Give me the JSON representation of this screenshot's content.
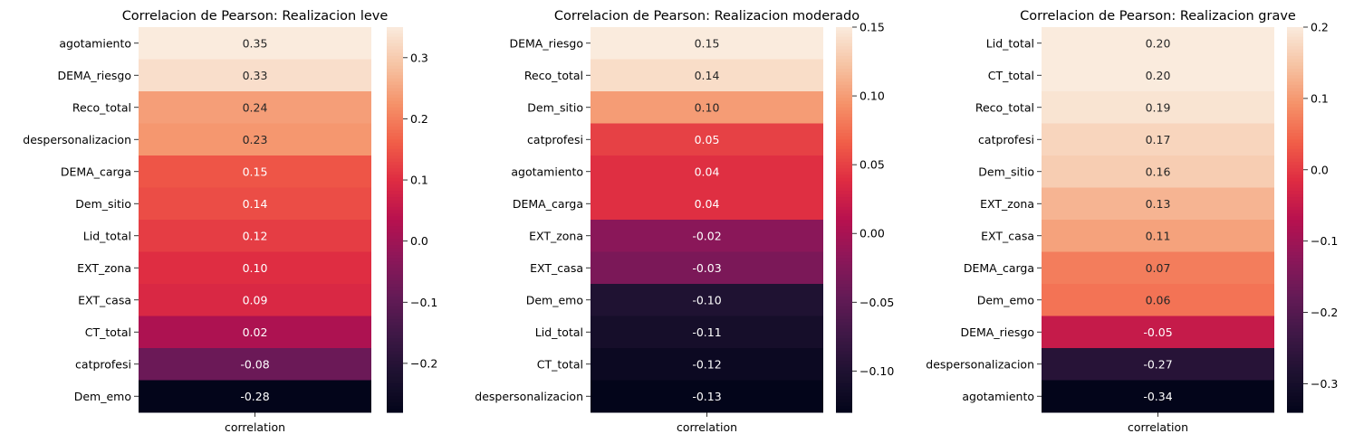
{
  "chart_data": [
    {
      "type": "heatmap",
      "title": "Correlacion de Pearson: Realizacion leve",
      "xlabel": "correlation",
      "rows": [
        "agotamiento",
        "DEMA_riesgo",
        "Reco_total",
        "despersonalizacion",
        "DEMA_carga",
        "Dem_sitio",
        "Lid_total",
        "EXT_zona",
        "EXT_casa",
        "CT_total",
        "catprofesi",
        "Dem_emo"
      ],
      "values": [
        0.35,
        0.33,
        0.24,
        0.23,
        0.15,
        0.14,
        0.12,
        0.1,
        0.09,
        0.02,
        -0.08,
        -0.28
      ],
      "vmin": -0.28,
      "vmax": 0.35,
      "colorbar_ticks": [
        "0.3",
        "0.2",
        "0.1",
        "0.0",
        "−0.1",
        "−0.2"
      ],
      "colorbar_tick_values": [
        0.3,
        0.2,
        0.1,
        0.0,
        -0.1,
        -0.2
      ],
      "colormap": "rocket"
    },
    {
      "type": "heatmap",
      "title": "Correlacion de Pearson: Realizacion moderado",
      "xlabel": "correlation",
      "rows": [
        "DEMA_riesgo",
        "Reco_total",
        "Dem_sitio",
        "catprofesi",
        "agotamiento",
        "DEMA_carga",
        "EXT_zona",
        "EXT_casa",
        "Dem_emo",
        "Lid_total",
        "CT_total",
        "despersonalizacion"
      ],
      "values": [
        0.15,
        0.14,
        0.1,
        0.05,
        0.04,
        0.04,
        -0.02,
        -0.03,
        -0.1,
        -0.11,
        -0.12,
        -0.13
      ],
      "vmin": -0.13,
      "vmax": 0.15,
      "colorbar_ticks": [
        "0.15",
        "0.10",
        "0.05",
        "0.00",
        "−0.05",
        "−0.10"
      ],
      "colorbar_tick_values": [
        0.15,
        0.1,
        0.05,
        0.0,
        -0.05,
        -0.1
      ],
      "colormap": "rocket"
    },
    {
      "type": "heatmap",
      "title": "Correlacion de Pearson: Realizacion grave",
      "xlabel": "correlation",
      "rows": [
        "Lid_total",
        "CT_total",
        "Reco_total",
        "catprofesi",
        "Dem_sitio",
        "EXT_zona",
        "EXT_casa",
        "DEMA_carga",
        "Dem_emo",
        "DEMA_riesgo",
        "despersonalizacion",
        "agotamiento"
      ],
      "values": [
        0.2,
        0.2,
        0.19,
        0.17,
        0.16,
        0.13,
        0.11,
        0.07,
        0.06,
        -0.05,
        -0.27,
        -0.34
      ],
      "vmin": -0.34,
      "vmax": 0.2,
      "colorbar_ticks": [
        "0.2",
        "0.1",
        "0.0",
        "−0.1",
        "−0.2",
        "−0.3"
      ],
      "colorbar_tick_values": [
        0.2,
        0.1,
        0.0,
        -0.1,
        -0.2,
        -0.3
      ],
      "colormap": "rocket"
    }
  ]
}
